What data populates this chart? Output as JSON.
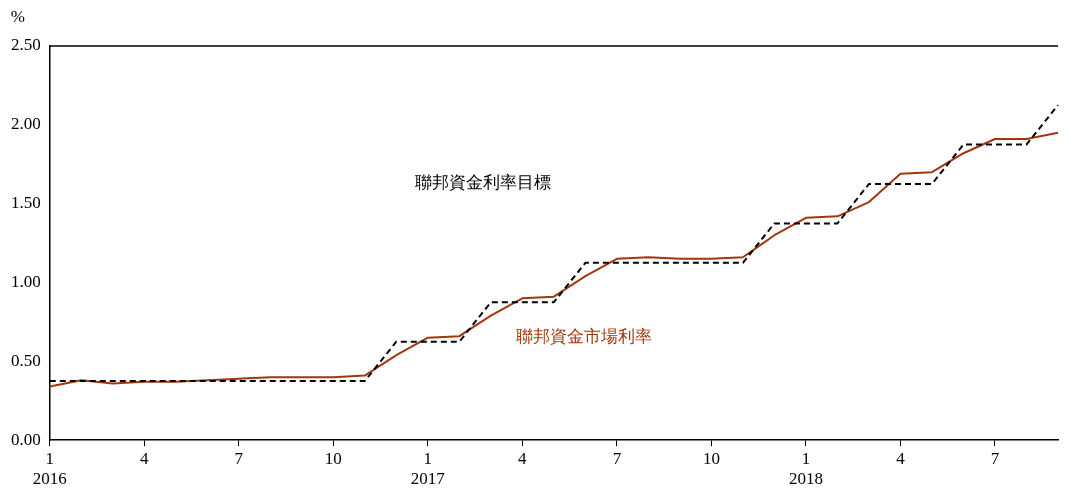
{
  "chart_data": {
    "type": "line",
    "ylabel": "%",
    "categories": [
      "1\n2016",
      null,
      null,
      "4",
      null,
      null,
      "7",
      null,
      null,
      "10",
      null,
      null,
      "1\n2017",
      null,
      null,
      "4",
      null,
      null,
      "7",
      null,
      null,
      "10",
      null,
      null,
      "1\n2018",
      null,
      null,
      "4",
      null,
      null,
      "7",
      null,
      null
    ],
    "series": [
      {
        "name": "聯邦資金利率目標",
        "color": "#000000",
        "line_style": "dashed",
        "values": [
          0.375,
          0.375,
          0.375,
          0.375,
          0.375,
          0.375,
          0.375,
          0.375,
          0.375,
          0.375,
          0.375,
          0.625,
          0.625,
          0.625,
          0.875,
          0.875,
          0.875,
          1.125,
          1.125,
          1.125,
          1.125,
          1.125,
          1.125,
          1.375,
          1.375,
          1.375,
          1.625,
          1.625,
          1.625,
          1.875,
          1.875,
          1.875,
          2.125
        ]
      },
      {
        "name": "聯邦資金市場利率",
        "color": "#a0380f",
        "line_style": "solid",
        "values": [
          0.34,
          0.38,
          0.36,
          0.37,
          0.37,
          0.38,
          0.39,
          0.4,
          0.4,
          0.4,
          0.41,
          0.54,
          0.65,
          0.66,
          0.79,
          0.9,
          0.91,
          1.04,
          1.15,
          1.16,
          1.15,
          1.15,
          1.16,
          1.3,
          1.41,
          1.42,
          1.51,
          1.69,
          1.7,
          1.82,
          1.91,
          1.91,
          1.95
        ]
      }
    ],
    "ylim": [
      0,
      2.5
    ],
    "yticks": [
      {
        "value": 0,
        "label": "0.00"
      },
      {
        "value": 0.5,
        "label": "0.50"
      },
      {
        "value": 1,
        "label": "1.00"
      },
      {
        "value": 1.5,
        "label": "1.50"
      },
      {
        "value": 2,
        "label": "2.00"
      },
      {
        "value": 2.5,
        "label": "2.50"
      }
    ],
    "grid": false,
    "legend": false,
    "marker": "none"
  }
}
